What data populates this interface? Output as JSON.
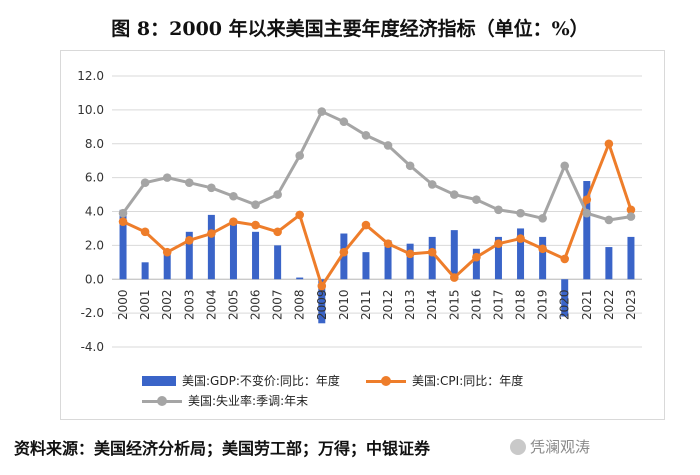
{
  "title": "图 8：2000 年以来美国主要年度经济指标（单位：%）",
  "source": "资料来源：美国经济分析局；美国劳工部；万得；中银证券",
  "watermark": "凭澜观涛",
  "colors": {
    "gdp": "#3a64c8",
    "cpi": "#ee7d2a",
    "unemp": "#a5a5a5"
  },
  "chart_data": {
    "type": "bar+line",
    "categories": [
      "2000",
      "2001",
      "2002",
      "2003",
      "2004",
      "2005",
      "2006",
      "2007",
      "2008",
      "2009",
      "2010",
      "2011",
      "2012",
      "2013",
      "2014",
      "2015",
      "2016",
      "2017",
      "2018",
      "2019",
      "2020",
      "2021",
      "2022",
      "2023"
    ],
    "ylim": [
      -4.0,
      12.0
    ],
    "yticks": [
      "-4.0",
      "-2.0",
      "0.0",
      "2.0",
      "4.0",
      "6.0",
      "8.0",
      "10.0",
      "12.0"
    ],
    "yticks_values": [
      -4,
      -2,
      0,
      2,
      4,
      6,
      8,
      10,
      12
    ],
    "legend_position": "bottom",
    "series": [
      {
        "name": "美国:GDP:不变价:同比：年度",
        "kind": "bar",
        "values": [
          4.1,
          1.0,
          1.7,
          2.8,
          3.8,
          3.5,
          2.8,
          2.0,
          0.1,
          -2.6,
          2.7,
          1.6,
          2.3,
          2.1,
          2.5,
          2.9,
          1.8,
          2.5,
          3.0,
          2.5,
          -2.2,
          5.8,
          1.9,
          2.5
        ]
      },
      {
        "name": "美国:CPI:同比：年度",
        "kind": "line",
        "values": [
          3.4,
          2.8,
          1.6,
          2.3,
          2.7,
          3.4,
          3.2,
          2.8,
          3.8,
          -0.4,
          1.6,
          3.2,
          2.1,
          1.5,
          1.6,
          0.1,
          1.3,
          2.1,
          2.4,
          1.8,
          1.2,
          4.7,
          8.0,
          4.1
        ]
      },
      {
        "name": "美国:失业率:季调:年末",
        "kind": "line",
        "values": [
          3.9,
          5.7,
          6.0,
          5.7,
          5.4,
          4.9,
          4.4,
          5.0,
          7.3,
          9.9,
          9.3,
          8.5,
          7.9,
          6.7,
          5.6,
          5.0,
          4.7,
          4.1,
          3.9,
          3.6,
          6.7,
          3.9,
          3.5,
          3.7
        ]
      }
    ]
  }
}
